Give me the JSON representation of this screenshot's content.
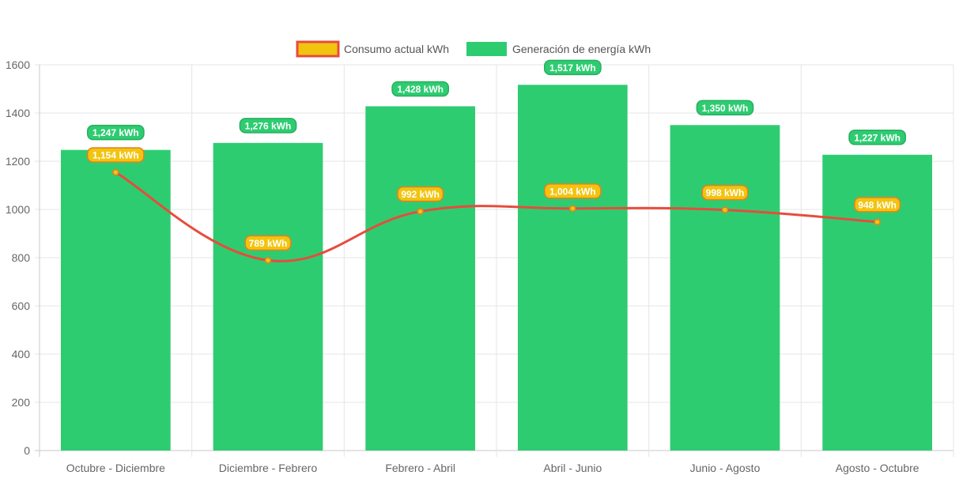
{
  "chart_data": {
    "type": "bar",
    "categories": [
      "Octubre - Diciembre",
      "Diciembre - Febrero",
      "Febrero - Abril",
      "Abril - Junio",
      "Junio - Agosto",
      "Agosto - Octubre"
    ],
    "series": [
      {
        "name": "Generación de energía kWh",
        "type": "bar",
        "values": [
          1247,
          1276,
          1428,
          1517,
          1350,
          1227
        ],
        "labels": [
          "1,247 kWh",
          "1,276 kWh",
          "1,428 kWh",
          "1,517 kWh",
          "1,350 kWh",
          "1,227 kWh"
        ],
        "color": "#2ecc71"
      },
      {
        "name": "Consumo actual kWh",
        "type": "line",
        "values": [
          1154,
          789,
          992,
          1004,
          998,
          948
        ],
        "labels": [
          "1,154 kWh",
          "789 kWh",
          "992 kWh",
          "1,004 kWh",
          "998 kWh",
          "948 kWh"
        ],
        "color": "#e74c3c",
        "point_color": "#f1c40f"
      }
    ],
    "title": "",
    "xlabel": "",
    "ylabel": "",
    "ylim": [
      0,
      1600
    ],
    "yticks": [
      0,
      200,
      400,
      600,
      800,
      1000,
      1200,
      1400,
      1600
    ],
    "grid": true,
    "legend": "top-center"
  }
}
